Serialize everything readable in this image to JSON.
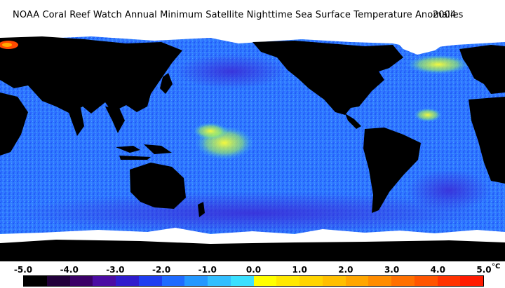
{
  "title": {
    "text": "NOAA Coral Reef Watch Annual Minimum Satellite Nighttime Sea Surface Temperature Anomalies",
    "year": "2004"
  },
  "legend": {
    "ticks": [
      "-5.0",
      "-4.0",
      "-3.0",
      "-2.0",
      "-1.0",
      "0.0",
      "1.0",
      "2.0",
      "3.0",
      "4.0",
      "5.0"
    ],
    "unit": "°C",
    "colors": [
      "#000000",
      "#22003a",
      "#3a0066",
      "#4b0ca3",
      "#2f1ccc",
      "#1f3ef0",
      "#1f6bff",
      "#2498ff",
      "#33bfff",
      "#3ae0ff",
      "#ffff00",
      "#ffe800",
      "#ffd400",
      "#ffbf00",
      "#ffa600",
      "#ff8c00",
      "#ff7000",
      "#ff5500",
      "#ff3300",
      "#ff1a00"
    ]
  },
  "map": {
    "land_color": "#000000",
    "ice_color": "#ffffff",
    "ocean_base_color": "#2b6fff"
  }
}
